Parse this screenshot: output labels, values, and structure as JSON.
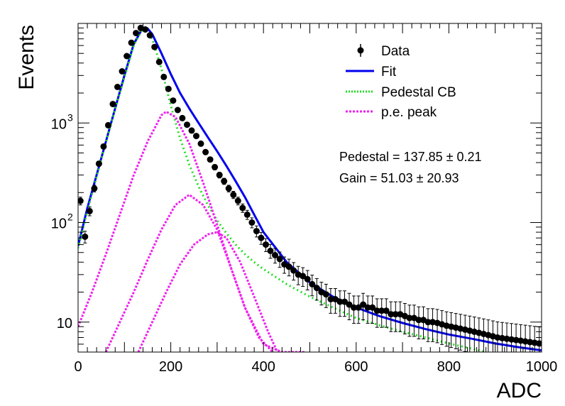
{
  "chart_data": {
    "type": "scatter",
    "xlabel": "ADC",
    "ylabel": "Events",
    "xlim": [
      0,
      1000
    ],
    "ylim": [
      5,
      10000
    ],
    "yscale": "log",
    "grid": false,
    "legend_position": "top-right",
    "x_ticks": [
      0,
      200,
      400,
      600,
      800,
      1000
    ],
    "x_tick_labels": [
      "0",
      "200",
      "400",
      "600",
      "800",
      "1000"
    ],
    "y_ticks": [
      10,
      100,
      1000
    ],
    "y_tick_labels": [
      "10",
      "10",
      "10"
    ],
    "y_tick_exponents": [
      "",
      "2",
      "3"
    ],
    "legend": [
      {
        "label": "Data",
        "color": "#000000",
        "style": "marker"
      },
      {
        "label": "Fit",
        "color": "#0000ee",
        "style": "solid"
      },
      {
        "label": "Pedestal CB",
        "color": "#22dd22",
        "style": "dotted"
      },
      {
        "label": "p.e. peak",
        "color": "#ee22ee",
        "style": "dotted"
      }
    ],
    "annotations": [
      "Pedestal = 137.85 ± 0.21",
      "Gain = 51.03 ± 20.93"
    ],
    "series": [
      {
        "name": "Data",
        "color": "#000000",
        "x": [
          5,
          15,
          25,
          35,
          45,
          55,
          65,
          75,
          85,
          95,
          105,
          115,
          125,
          135,
          145,
          155,
          165,
          175,
          185,
          195,
          205,
          215,
          225,
          235,
          245,
          255,
          265,
          275,
          285,
          295,
          305,
          315,
          325,
          335,
          345,
          355,
          365,
          375,
          385,
          395,
          405,
          415,
          425,
          435,
          445,
          455,
          465,
          475,
          485,
          495,
          505,
          515,
          525,
          535,
          545,
          555,
          565,
          575,
          585,
          595,
          605,
          615,
          625,
          635,
          645,
          655,
          665,
          675,
          685,
          695,
          705,
          715,
          725,
          735,
          745,
          755,
          765,
          775,
          785,
          795,
          805,
          815,
          825,
          835,
          845,
          855,
          865,
          875,
          885,
          895,
          905,
          915,
          925,
          935,
          945,
          955,
          965,
          975,
          985,
          995
        ],
        "y": [
          165,
          72,
          130,
          220,
          390,
          580,
          950,
          1550,
          2300,
          3300,
          4700,
          6400,
          8000,
          9000,
          8700,
          7600,
          5800,
          4100,
          2900,
          2200,
          1680,
          1350,
          1120,
          960,
          840,
          740,
          620,
          510,
          430,
          360,
          300,
          260,
          220,
          190,
          165,
          140,
          120,
          100,
          82,
          70,
          60,
          52,
          47,
          43,
          38,
          36,
          33,
          30,
          29,
          27,
          24,
          22,
          20,
          19,
          17,
          17,
          16,
          16,
          15,
          14,
          14,
          15,
          14,
          14,
          13,
          13,
          13,
          12,
          12,
          12,
          11.5,
          11,
          11,
          10.5,
          10.5,
          10,
          10,
          9.8,
          9.5,
          9.2,
          9,
          8.8,
          8.6,
          8.4,
          8.2,
          8,
          7.8,
          7.6,
          7.4,
          7.2,
          7,
          6.9,
          6.8,
          6.7,
          6.6,
          6.5,
          6.4,
          6.3,
          6.2,
          6.1
        ],
        "display_y": [
          165,
          72,
          130,
          220,
          390,
          580,
          950,
          1550,
          2300,
          3300,
          4700,
          6400,
          8000,
          9000,
          8700,
          7600,
          5800,
          4100,
          2900,
          2200,
          1680,
          1350,
          1120,
          960,
          840,
          740,
          620,
          510,
          430,
          360,
          300,
          260,
          220,
          190,
          165,
          140,
          120,
          100,
          82,
          70,
          60,
          52,
          47,
          43,
          38,
          36,
          33,
          30,
          29,
          27,
          24,
          22,
          20,
          19,
          17,
          17,
          16,
          16,
          15,
          14,
          14,
          15,
          14,
          14,
          13,
          13,
          13,
          12,
          12,
          12,
          11.5,
          11,
          11,
          10.5,
          10.5,
          10,
          10,
          9.8,
          9.5,
          9.2,
          9,
          8.8,
          8.6,
          8.4,
          8.2,
          8,
          7.8,
          7.6,
          7.4,
          7.2,
          7,
          6.9,
          6.8,
          6.7,
          6.6,
          6.5,
          6.4,
          6.3,
          6.2,
          6.1
        ]
      },
      {
        "name": "Fit",
        "color": "#0000ee",
        "x": [
          0,
          20,
          40,
          60,
          80,
          100,
          120,
          140,
          150,
          160,
          180,
          200,
          220,
          240,
          260,
          280,
          300,
          320,
          340,
          360,
          380,
          400,
          450,
          500,
          550,
          600,
          650,
          700,
          750,
          800,
          850,
          900,
          950,
          1000
        ],
        "y": [
          58,
          140,
          300,
          650,
          1400,
          3000,
          6200,
          9100,
          8900,
          7800,
          5000,
          3100,
          2000,
          1400,
          1000,
          720,
          520,
          370,
          260,
          180,
          120,
          80,
          40,
          25,
          18,
          14,
          11.5,
          9.8,
          8.5,
          7.5,
          6.8,
          6.1,
          5.6,
          5.2
        ]
      },
      {
        "name": "Pedestal CB",
        "color": "#22dd22",
        "x": [
          0,
          20,
          40,
          60,
          80,
          100,
          120,
          140,
          160,
          180,
          200,
          220,
          240,
          260,
          280,
          300,
          320,
          340,
          360,
          380,
          400,
          450,
          500,
          550,
          600,
          650,
          700,
          750,
          800,
          850,
          880
        ],
        "y": [
          55,
          130,
          290,
          640,
          1380,
          2900,
          6000,
          9000,
          7000,
          3500,
          1500,
          700,
          380,
          230,
          150,
          105,
          78,
          60,
          48,
          40,
          34,
          24,
          18,
          14,
          11,
          9.3,
          8,
          7,
          6.1,
          5.4,
          5
        ]
      },
      {
        "name": "p.e. peak",
        "color": "#ee22ee",
        "x": [
          0,
          30,
          60,
          90,
          120,
          150,
          180,
          190,
          210,
          240,
          270,
          300,
          330,
          360,
          400,
          440,
          480,
          490
        ],
        "y": [
          9,
          20,
          48,
          120,
          300,
          650,
          1200,
          1300,
          1150,
          620,
          250,
          95,
          35,
          14,
          6,
          5,
          5,
          5
        ]
      },
      {
        "name": "p.e. peak",
        "color": "#ee22ee",
        "x": [
          60,
          90,
          120,
          150,
          180,
          210,
          240,
          270,
          300,
          330,
          360,
          390,
          420
        ],
        "y": [
          5,
          10,
          20,
          42,
          85,
          150,
          190,
          150,
          85,
          35,
          14,
          7,
          5
        ]
      },
      {
        "name": "p.e. peak",
        "color": "#ee22ee",
        "x": [
          130,
          160,
          190,
          220,
          250,
          280,
          300,
          320,
          350,
          380,
          410,
          430
        ],
        "y": [
          5,
          10,
          20,
          38,
          60,
          76,
          80,
          70,
          40,
          18,
          8,
          5
        ]
      }
    ]
  }
}
